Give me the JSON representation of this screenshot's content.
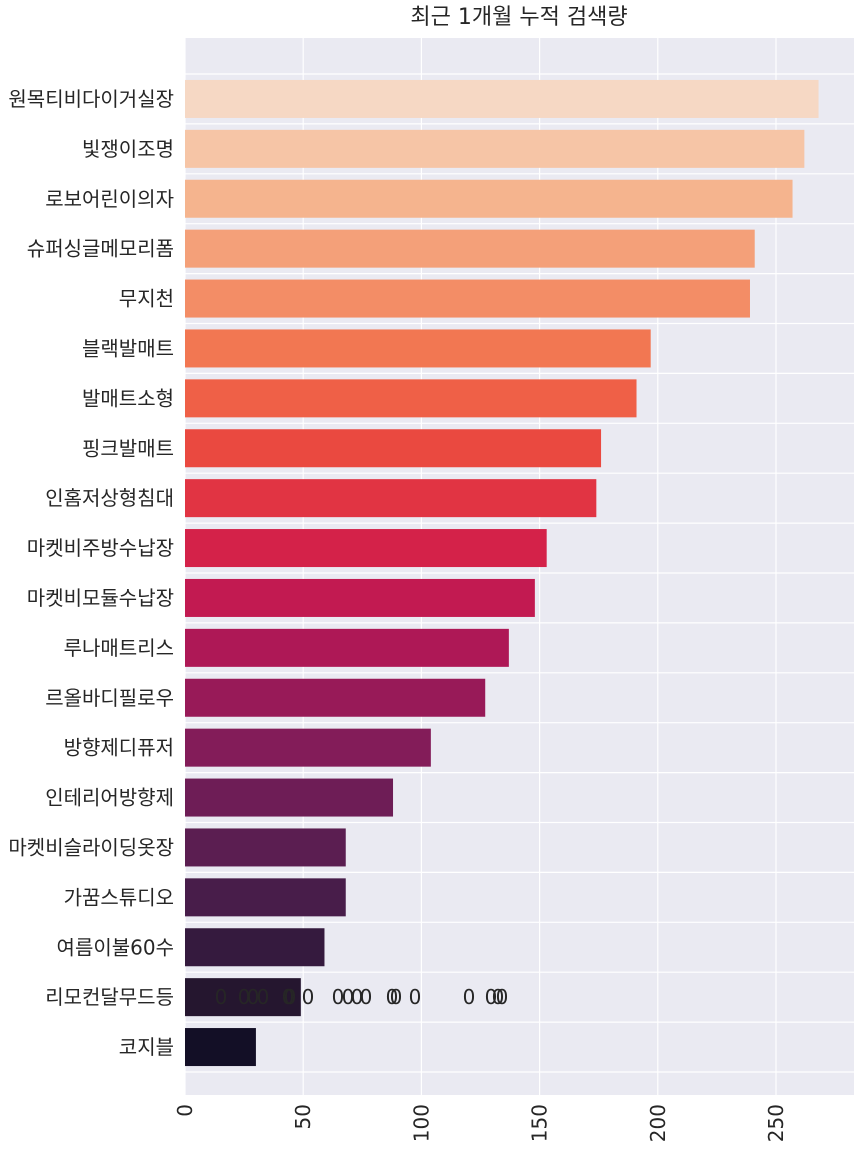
{
  "chart_data": {
    "type": "bar",
    "orientation": "horizontal",
    "title": "최근 1개월 누적 검색량",
    "xlabel": "",
    "ylabel": "",
    "xlim": [
      0,
      283
    ],
    "xticks": [
      0,
      50,
      100,
      150,
      200,
      250
    ],
    "grid": true,
    "background": "#EAEAF2",
    "categories": [
      "원목티비다이거실장",
      "빛쟁이조명",
      "로보어린이의자",
      "슈퍼싱글메모리폼",
      "무지천",
      "블랙발매트",
      "발매트소형",
      "핑크발매트",
      "인홈저상형침대",
      "마켓비주방수납장",
      "마켓비모듈수납장",
      "루나매트리스",
      "르올바디필로우",
      "방향제디퓨저",
      "인테리어방향제",
      "마켓비슬라이딩옷장",
      "가꿈스튜디오",
      "여름이불60수",
      "리모컨달무드등",
      "코지블"
    ],
    "values": [
      268,
      262,
      257,
      241,
      239,
      197,
      191,
      176,
      174,
      153,
      148,
      137,
      127,
      104,
      88,
      68,
      68,
      59,
      49,
      30
    ],
    "colors": [
      "#F6D8C4",
      "#F6C5A6",
      "#F5B48E",
      "#F4A079",
      "#F38D66",
      "#F27752",
      "#EF6047",
      "#EA4940",
      "#E13443",
      "#D42249",
      "#C21A51",
      "#AE1856",
      "#981A58",
      "#831C59",
      "#6E1D56",
      "#5B1E51",
      "#481D4A",
      "#351A3E",
      "#25162F",
      "#130F26"
    ],
    "stray_text_labels": [
      "0",
      "0",
      "0",
      "0",
      "0",
      "0",
      "0",
      "0",
      "0",
      "0",
      "0",
      "0",
      "0",
      "0",
      "0",
      "0",
      "0",
      "0"
    ]
  }
}
